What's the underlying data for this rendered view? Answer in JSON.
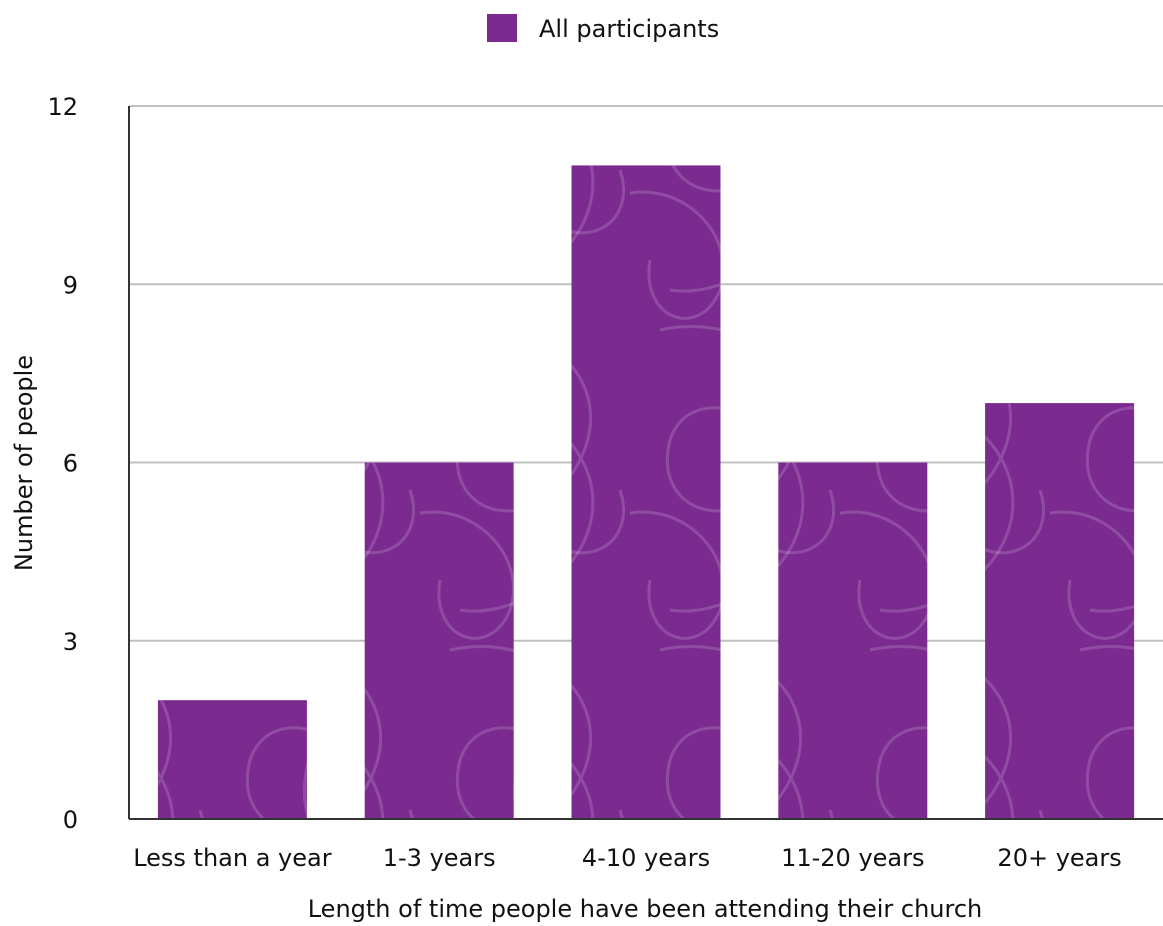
{
  "chart_data": {
    "type": "bar",
    "categories": [
      "Less than a year",
      "1-3 years",
      "4-10 years",
      "11-20 years",
      "20+ years"
    ],
    "series": [
      {
        "name": "All participants",
        "values": [
          2,
          6,
          11,
          6,
          7
        ]
      }
    ],
    "xlabel": "Length of time people have been attending their church",
    "ylabel": "Number of people",
    "ylim": [
      0,
      12
    ],
    "yticks": [
      0,
      3,
      6,
      9,
      12
    ],
    "grid": true,
    "legend_position": "top-center",
    "colors": {
      "bar": "#7b2a90",
      "grid": "#c0c0c0",
      "axis": "#333333",
      "pattern": "#ffffff"
    }
  }
}
